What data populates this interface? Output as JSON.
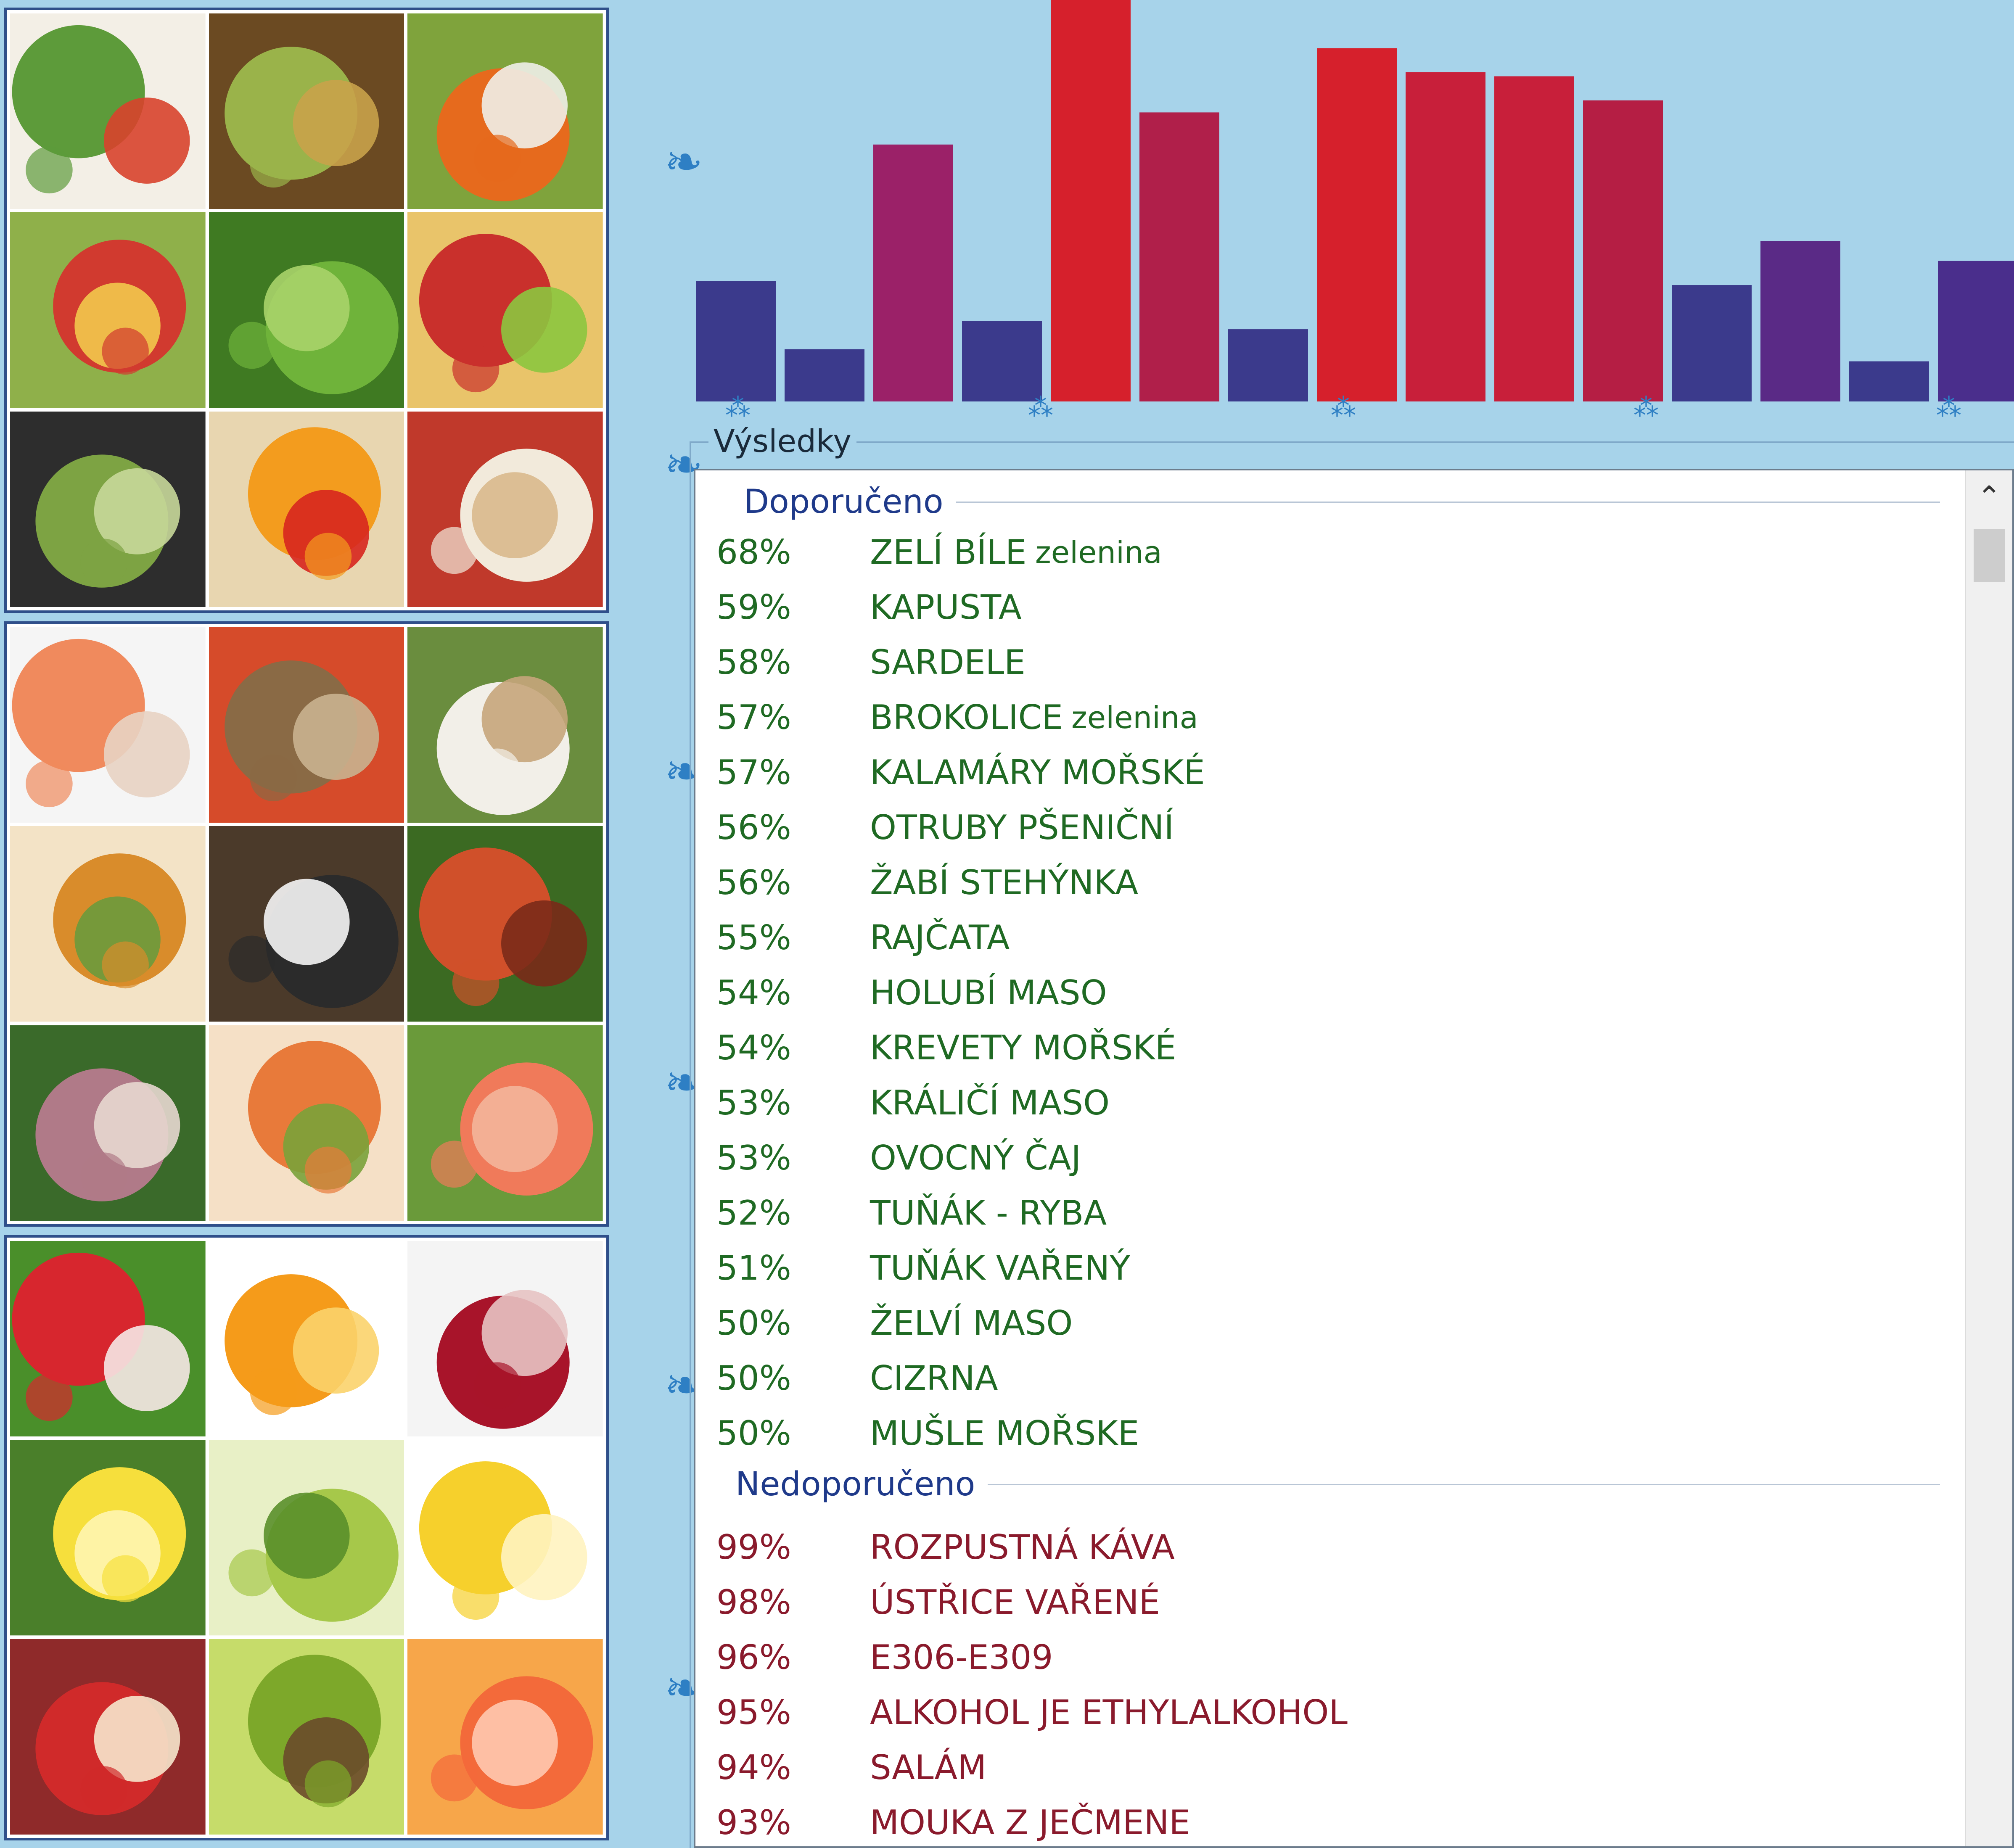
{
  "results": {
    "title": "Výsledky",
    "recommended_header": "Doporučeno",
    "not_recommended_header": "Nedoporučeno",
    "recommended": [
      {
        "pct": "68%",
        "name": "ZELÍ BÍLE",
        "cat": "zelenina"
      },
      {
        "pct": "59%",
        "name": "KAPUSTA",
        "cat": ""
      },
      {
        "pct": "58%",
        "name": "SARDELE",
        "cat": ""
      },
      {
        "pct": "57%",
        "name": "BROKOLICE",
        "cat": "zelenina"
      },
      {
        "pct": "57%",
        "name": "KALAMÁRY MOŘSKÉ",
        "cat": ""
      },
      {
        "pct": "56%",
        "name": "OTRUBY PŠENIČNÍ",
        "cat": ""
      },
      {
        "pct": "56%",
        "name": "ŽABÍ STEHÝNKA",
        "cat": ""
      },
      {
        "pct": "55%",
        "name": "RAJČATA",
        "cat": ""
      },
      {
        "pct": "54%",
        "name": "HOLUBÍ MASO",
        "cat": ""
      },
      {
        "pct": "54%",
        "name": "KREVETY MOŘSKÉ",
        "cat": ""
      },
      {
        "pct": "53%",
        "name": "KRÁLIČÍ MASO",
        "cat": ""
      },
      {
        "pct": "53%",
        "name": "OVOCNÝ ČAJ",
        "cat": ""
      },
      {
        "pct": "52%",
        "name": "TUŇÁK - RYBA",
        "cat": ""
      },
      {
        "pct": "51%",
        "name": "TUŇÁK VAŘENÝ",
        "cat": ""
      },
      {
        "pct": "50%",
        "name": "ŽELVÍ MASO",
        "cat": ""
      },
      {
        "pct": "50%",
        "name": "CIZRNA",
        "cat": ""
      },
      {
        "pct": "50%",
        "name": "MUŠLE MOŘSKE",
        "cat": ""
      }
    ],
    "not_recommended": [
      {
        "pct": "99%",
        "name": "ROZPUSTNÁ KÁVA",
        "cat": ""
      },
      {
        "pct": "98%",
        "name": "ÚSTŘICE VAŘENÉ",
        "cat": ""
      },
      {
        "pct": "96%",
        "name": "E306-E309",
        "cat": ""
      },
      {
        "pct": "95%",
        "name": "ALKOHOL JE ETHYLALKOHOL",
        "cat": ""
      },
      {
        "pct": "94%",
        "name": "SALÁM",
        "cat": ""
      },
      {
        "pct": "93%",
        "name": "MOUKA Z JEČMENE",
        "cat": ""
      }
    ]
  },
  "bar_chart": {
    "values": [
      30,
      13,
      64,
      20,
      100,
      72,
      18,
      88,
      82,
      81,
      75,
      29,
      40,
      10,
      35
    ],
    "colors": [
      "#3b3a8c",
      "#3b3a8c",
      "#9b2168",
      "#3b3a8c",
      "#d6202c",
      "#b01f4a",
      "#3b3a8c",
      "#d6202c",
      "#c81f3a",
      "#c81f3a",
      "#b51e44",
      "#3b3a8c",
      "#5a2a86",
      "#3b3a8c",
      "#4a2e8c"
    ]
  },
  "photos": {
    "group_1": [
      "salad",
      "pears",
      "vegetables",
      "fruit-salad",
      "lettuce",
      "apples",
      "asparagus",
      "citrus-tomatoes",
      "beans"
    ],
    "group_2": [
      "shrimp",
      "grilled-fish",
      "seafood-plate",
      "fish-soup",
      "mussels",
      "shrimp-octopus",
      "squid",
      "shrimp-salad",
      "salmon"
    ],
    "group_3": [
      "strawberry",
      "orange",
      "pomegranate",
      "lemon",
      "grapes",
      "bananas",
      "apple",
      "kiwi",
      "grapefruit"
    ],
    "tile_colors": {
      "salad": [
        "#5d9b3a",
        "#d8432c",
        "#f3efe6"
      ],
      "pears": [
        "#9ab34a",
        "#c9a24a",
        "#6b4a22"
      ],
      "vegetables": [
        "#e66a1d",
        "#f0efe9",
        "#7fa33c"
      ],
      "fruit-salad": [
        "#d13a2f",
        "#f2c94c",
        "#8fb04a"
      ],
      "lettuce": [
        "#6fb33a",
        "#a8d36a",
        "#3f7a22"
      ],
      "apples": [
        "#c9302c",
        "#8cc63f",
        "#e9c46a"
      ],
      "asparagus": [
        "#7da343",
        "#c8d89a",
        "#2d2d2d"
      ],
      "citrus-tomatoes": [
        "#f39c1e",
        "#d7261e",
        "#e8d6b0"
      ],
      "beans": [
        "#f2eadb",
        "#d9b98c",
        "#c0392b"
      ],
      "shrimp": [
        "#f08a5d",
        "#e8d3c3",
        "#f5f5f5"
      ],
      "grilled-fish": [
        "#8a6a45",
        "#c9b38f",
        "#d64b2a"
      ],
      "seafood-plate": [
        "#f2efe8",
        "#c7a57b",
        "#6a8d3e"
      ],
      "fish-soup": [
        "#d98c2b",
        "#6a9a3c",
        "#f3e3c6"
      ],
      "mussels": [
        "#2b2b2b",
        "#f5f5f5",
        "#4b3a2a"
      ],
      "shrimp-octopus": [
        "#d0502a",
        "#7a2a18",
        "#3b6a22"
      ],
      "squid": [
        "#b07a88",
        "#e8d8d0",
        "#3a6a2a"
      ],
      "shrimp-salad": [
        "#e87a3a",
        "#7aa23a",
        "#f5e0c6"
      ],
      "salmon": [
        "#f07a5a",
        "#f3b59a",
        "#6a9a3a"
      ],
      "strawberry": [
        "#d7262e",
        "#f6e8e6",
        "#4a8f2a"
      ],
      "orange": [
        "#f59b1a",
        "#fbd36b",
        "#ffffff"
      ],
      "pomegranate": [
        "#a8142a",
        "#e7c3c3",
        "#f4f4f4"
      ],
      "lemon": [
        "#f6df3c",
        "#fff5b0",
        "#4a7f2a"
      ],
      "grapes": [
        "#a6c84a",
        "#5a8f2a",
        "#e8f0c6"
      ],
      "bananas": [
        "#f6d02c",
        "#fff3c0",
        "#ffffff"
      ],
      "apple": [
        "#d02a2a",
        "#f6e6cc",
        "#8f2a2a"
      ],
      "kiwi": [
        "#7da82a",
        "#6a4a2a",
        "#c6dc6a"
      ],
      "grapefruit": [
        "#f36a3a",
        "#ffc9b0",
        "#f7a64a"
      ]
    }
  },
  "icons": {
    "scroll_up": "chevron-up-icon"
  }
}
